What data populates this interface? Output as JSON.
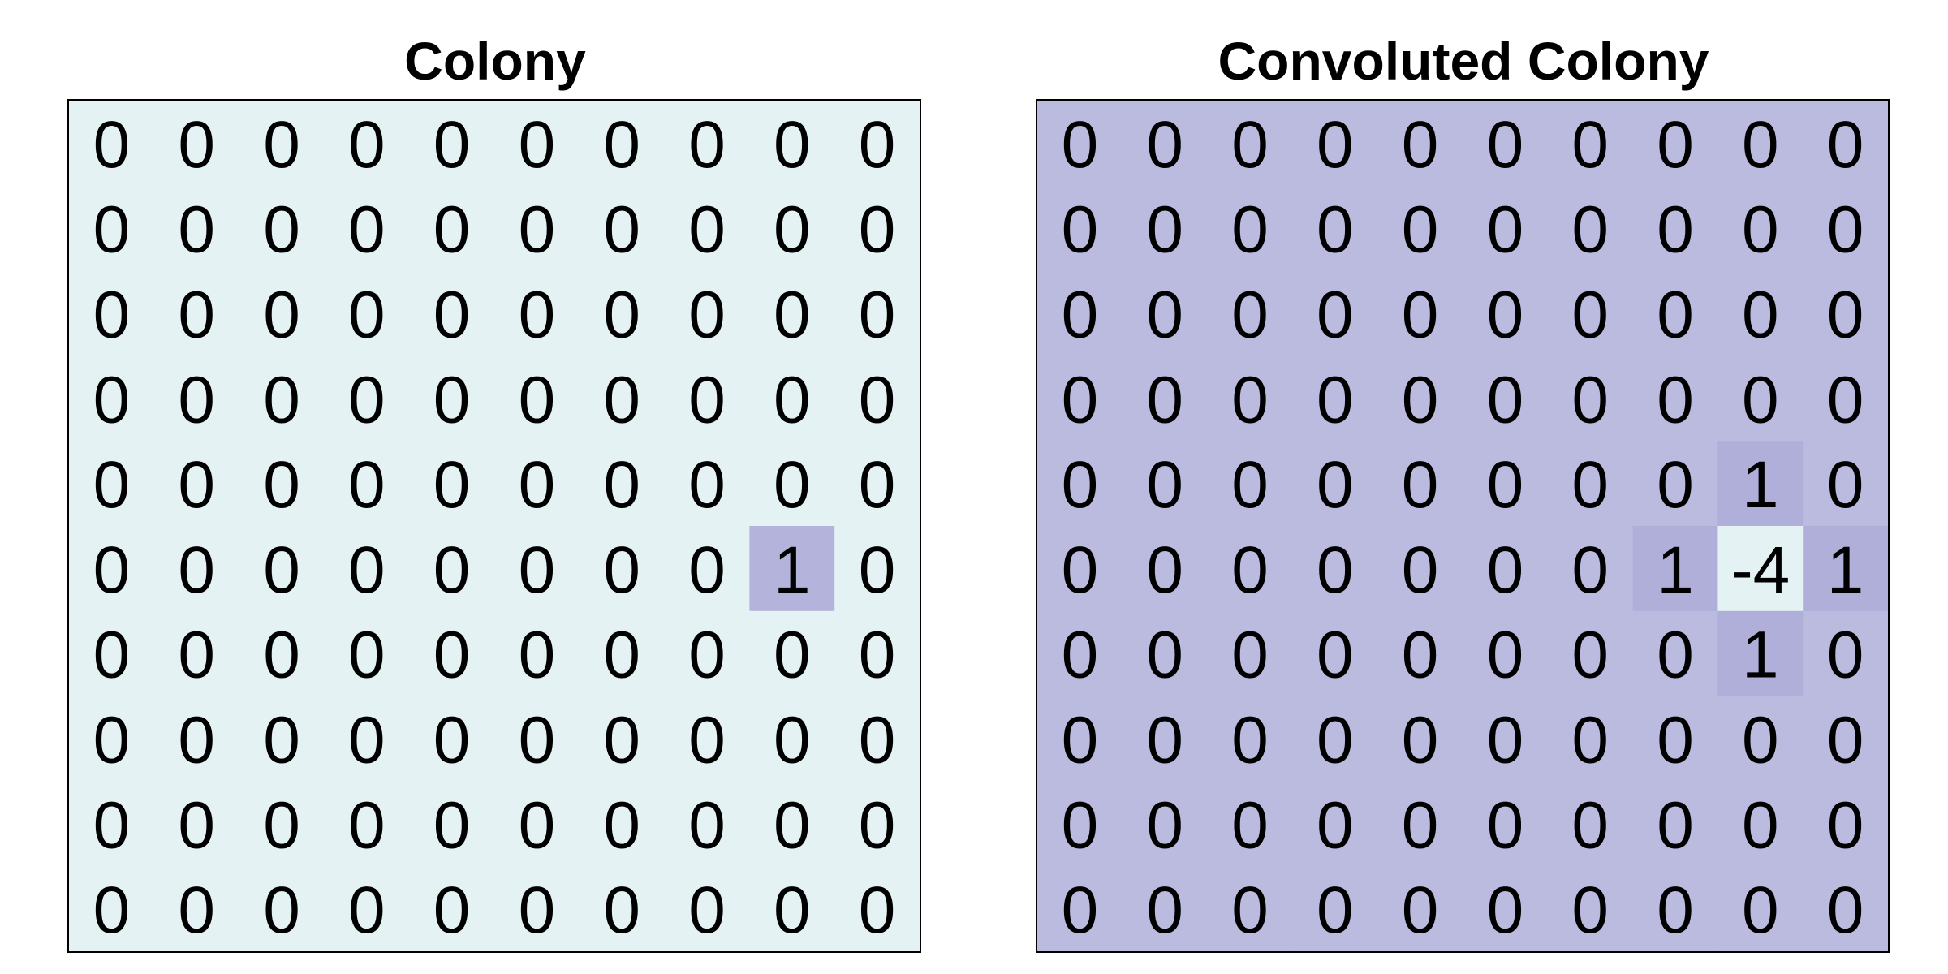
{
  "chart_data": [
    {
      "type": "heatmap",
      "title": "Colony",
      "rows": 10,
      "cols": 10,
      "colors": {
        "low": "#e4f2f3",
        "high": "#b4b3dc"
      },
      "grid": false,
      "values": [
        [
          0,
          0,
          0,
          0,
          0,
          0,
          0,
          0,
          0,
          0
        ],
        [
          0,
          0,
          0,
          0,
          0,
          0,
          0,
          0,
          0,
          0
        ],
        [
          0,
          0,
          0,
          0,
          0,
          0,
          0,
          0,
          0,
          0
        ],
        [
          0,
          0,
          0,
          0,
          0,
          0,
          0,
          0,
          0,
          0
        ],
        [
          0,
          0,
          0,
          0,
          0,
          0,
          0,
          0,
          0,
          0
        ],
        [
          0,
          0,
          0,
          0,
          0,
          0,
          0,
          0,
          1,
          0
        ],
        [
          0,
          0,
          0,
          0,
          0,
          0,
          0,
          0,
          0,
          0
        ],
        [
          0,
          0,
          0,
          0,
          0,
          0,
          0,
          0,
          0,
          0
        ],
        [
          0,
          0,
          0,
          0,
          0,
          0,
          0,
          0,
          0,
          0
        ],
        [
          0,
          0,
          0,
          0,
          0,
          0,
          0,
          0,
          0,
          0
        ]
      ]
    },
    {
      "type": "heatmap",
      "title": "Convoluted Colony",
      "rows": 10,
      "cols": 10,
      "colors": {
        "lowest": "#e4f2f3",
        "zero": "#bbbadf",
        "highest": "#b0afd9"
      },
      "grid": false,
      "values": [
        [
          0,
          0,
          0,
          0,
          0,
          0,
          0,
          0,
          0,
          0
        ],
        [
          0,
          0,
          0,
          0,
          0,
          0,
          0,
          0,
          0,
          0
        ],
        [
          0,
          0,
          0,
          0,
          0,
          0,
          0,
          0,
          0,
          0
        ],
        [
          0,
          0,
          0,
          0,
          0,
          0,
          0,
          0,
          0,
          0
        ],
        [
          0,
          0,
          0,
          0,
          0,
          0,
          0,
          0,
          1,
          0
        ],
        [
          0,
          0,
          0,
          0,
          0,
          0,
          0,
          1,
          -4,
          1
        ],
        [
          0,
          0,
          0,
          0,
          0,
          0,
          0,
          0,
          1,
          0
        ],
        [
          0,
          0,
          0,
          0,
          0,
          0,
          0,
          0,
          0,
          0
        ],
        [
          0,
          0,
          0,
          0,
          0,
          0,
          0,
          0,
          0,
          0
        ],
        [
          0,
          0,
          0,
          0,
          0,
          0,
          0,
          0,
          0,
          0
        ]
      ]
    }
  ]
}
